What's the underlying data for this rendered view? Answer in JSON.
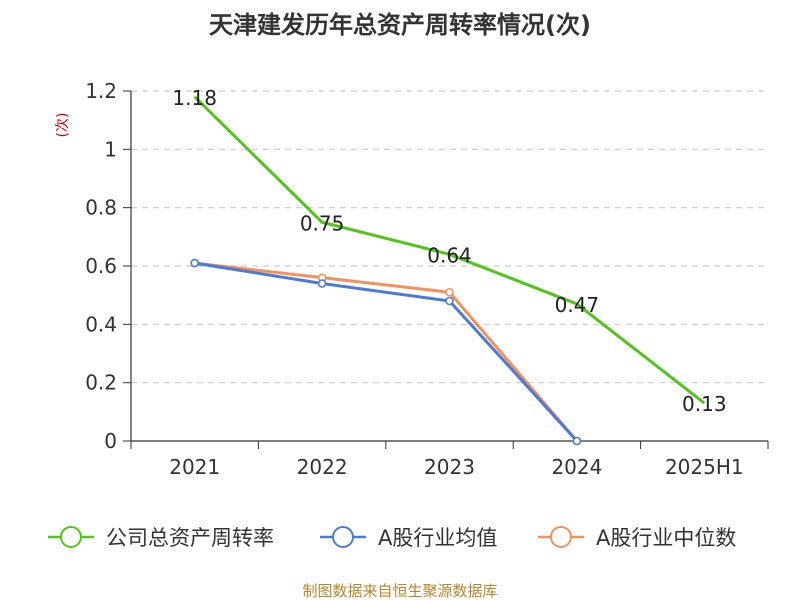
{
  "chart_data": {
    "type": "line",
    "title": "天津建发历年总资产周转率情况(次)",
    "ylabel": "(次)",
    "xlabel": "",
    "categories": [
      "2021",
      "2022",
      "2023",
      "2024",
      "2025H1"
    ],
    "ylim": [
      0,
      1.2
    ],
    "yticks": [
      "0",
      "0.2",
      "0.4",
      "0.6",
      "0.8",
      "1",
      "1.2"
    ],
    "grid": true,
    "legend_position": "bottom",
    "series": [
      {
        "name": "公司总资产周转率",
        "color": "#52c41a",
        "values": [
          1.18,
          0.75,
          0.64,
          0.47,
          0.13
        ],
        "data_labels": [
          "1.18",
          "0.75",
          "0.64",
          "0.47",
          "0.13"
        ]
      },
      {
        "name": "A股行业均值",
        "color": "#4a7bd8",
        "values": [
          0.61,
          0.54,
          0.48,
          0.0,
          null
        ]
      },
      {
        "name": "A股行业中位数",
        "color": "#f4905a",
        "values": [
          0.61,
          0.56,
          0.51,
          0.0,
          null
        ]
      }
    ],
    "source": "制图数据来自恒生聚源数据库"
  }
}
